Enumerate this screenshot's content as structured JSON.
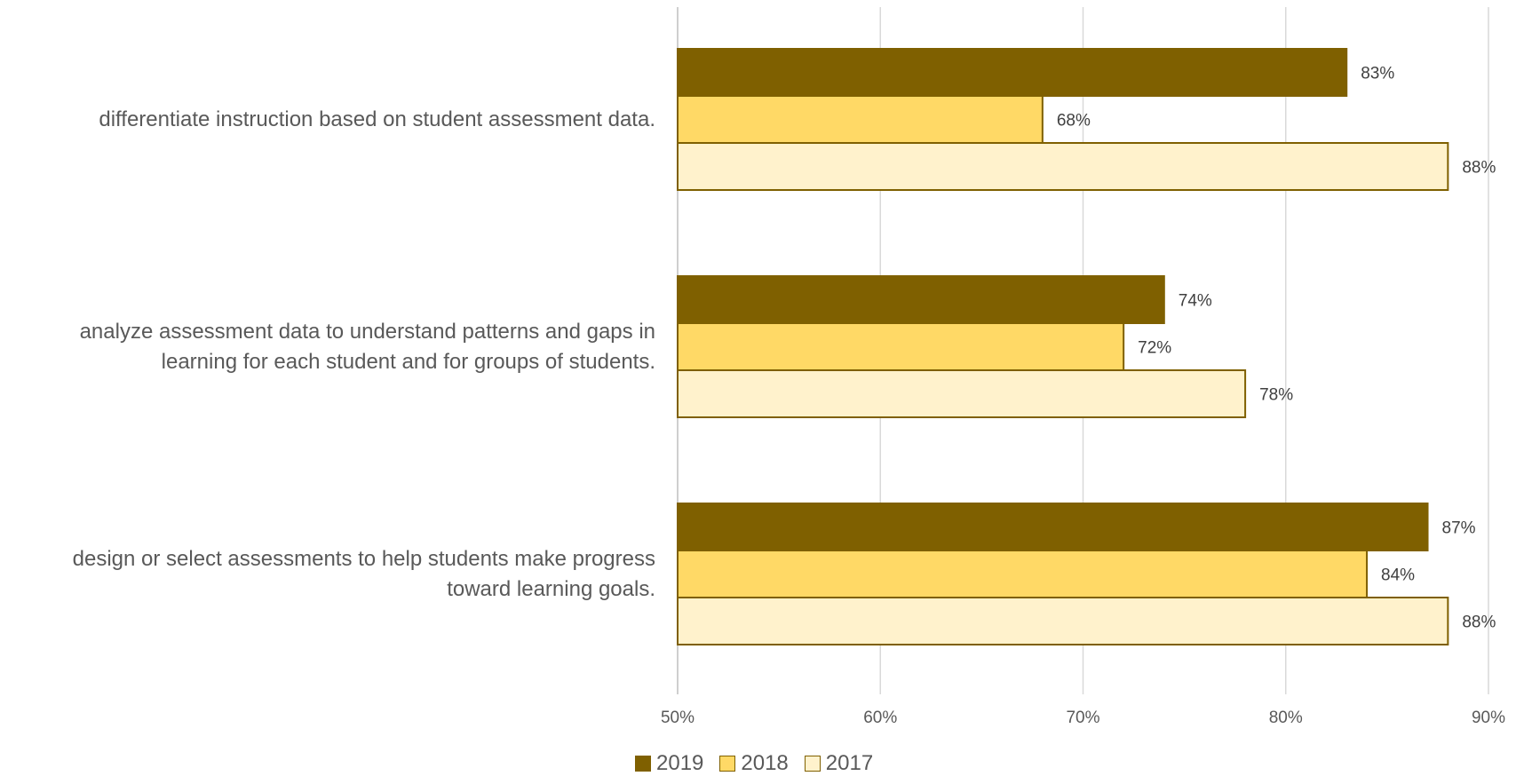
{
  "chart_data": {
    "type": "bar",
    "orientation": "horizontal",
    "categories": [
      "differentiate instruction based on student assessment data.",
      "analyze assessment data to understand patterns and gaps in\nlearning for each student and for groups of students.",
      "design or select assessments to help students make progress\ntoward learning goals."
    ],
    "series": [
      {
        "name": "2019",
        "values": [
          83,
          74,
          87
        ],
        "labels": [
          "83%",
          "74%",
          "87%"
        ],
        "color": "#7f6000"
      },
      {
        "name": "2018",
        "values": [
          68,
          72,
          84
        ],
        "labels": [
          "68%",
          "72%",
          "84%"
        ],
        "color": "#ffd966"
      },
      {
        "name": "2017",
        "values": [
          88,
          78,
          88
        ],
        "labels": [
          "88%",
          "78%",
          "88%"
        ],
        "color": "#fff2cc"
      }
    ],
    "xlim": [
      50,
      90
    ],
    "ticks": [
      50,
      60,
      70,
      80,
      90
    ],
    "tick_labels": [
      "50%",
      "60%",
      "70%",
      "80%",
      "90%"
    ],
    "grid": true,
    "legend_position": "bottom",
    "bar_outline_color": "#7f6000",
    "grid_color": "#d9d9d9"
  }
}
